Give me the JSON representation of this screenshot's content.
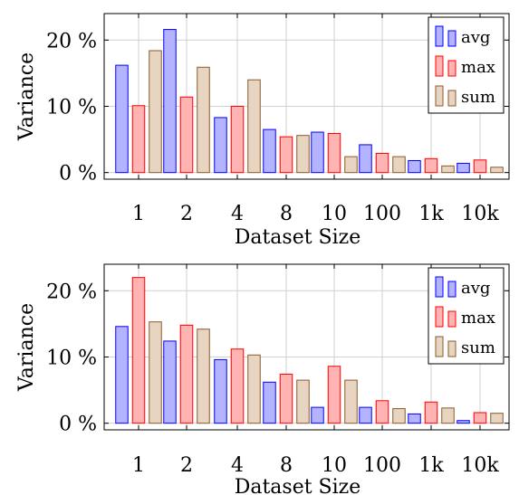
{
  "chart_data": [
    {
      "type": "bar",
      "xlabel": "Dataset Size",
      "ylabel": "Variance",
      "categories": [
        "1",
        "2",
        "4",
        "8",
        "10",
        "100",
        "1k",
        "10k"
      ],
      "yticks": [
        "0 %",
        "10 %",
        "20 %"
      ],
      "ylim": [
        -1,
        24
      ],
      "grid": true,
      "legend_position": "top-right",
      "series": [
        {
          "name": "avg",
          "color": "#b3b3ff",
          "edge": "#0000ff",
          "values": [
            16.2,
            21.6,
            8.3,
            6.5,
            6.1,
            4.2,
            1.8,
            1.4
          ]
        },
        {
          "name": "max",
          "color": "#ffb3b3",
          "edge": "#ff0000",
          "values": [
            10.1,
            11.4,
            10.0,
            5.4,
            5.9,
            2.9,
            2.1,
            1.9
          ]
        },
        {
          "name": "sum",
          "color": "#e7d5c1",
          "edge": "#8b5a2b",
          "values": [
            18.4,
            15.9,
            14.0,
            5.6,
            2.4,
            2.4,
            1.0,
            0.8
          ]
        }
      ]
    },
    {
      "type": "bar",
      "xlabel": "Dataset Size",
      "ylabel": "Variance",
      "categories": [
        "1",
        "2",
        "4",
        "8",
        "10",
        "100",
        "1k",
        "10k"
      ],
      "yticks": [
        "0 %",
        "10 %",
        "20 %"
      ],
      "ylim": [
        -1,
        24
      ],
      "grid": true,
      "legend_position": "top-right",
      "series": [
        {
          "name": "avg",
          "color": "#b3b3ff",
          "edge": "#0000ff",
          "values": [
            14.6,
            12.4,
            9.6,
            6.2,
            2.4,
            2.4,
            1.4,
            0.4
          ]
        },
        {
          "name": "max",
          "color": "#ffb3b3",
          "edge": "#ff0000",
          "values": [
            22.0,
            14.8,
            11.2,
            7.4,
            8.6,
            3.4,
            3.2,
            1.6
          ]
        },
        {
          "name": "sum",
          "color": "#e7d5c1",
          "edge": "#8b5a2b",
          "values": [
            15.3,
            14.2,
            10.3,
            6.5,
            6.5,
            2.2,
            2.3,
            1.5
          ]
        }
      ]
    }
  ]
}
